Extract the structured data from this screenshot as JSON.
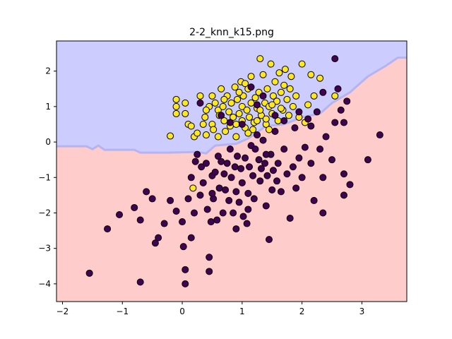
{
  "chart_data": {
    "type": "scatter",
    "title": "2-2_knn_k15.png",
    "xlabel": "",
    "ylabel": "",
    "xlim": [
      -2.1,
      3.75
    ],
    "ylim": [
      -4.5,
      2.85
    ],
    "x_ticks": [
      -2,
      -1,
      0,
      1,
      2,
      3
    ],
    "y_ticks": [
      -4,
      -3,
      -2,
      -1,
      0,
      1,
      2
    ],
    "grid": false,
    "legend": "none",
    "decision_regions": {
      "upper_class_color": "#ccccff",
      "lower_class_color": "#ffcccc",
      "boundary_color": "#b4b4f0",
      "boundary": [
        [
          -2.1,
          -0.12
        ],
        [
          -1.6,
          -0.12
        ],
        [
          -1.5,
          -0.2
        ],
        [
          -1.4,
          -0.1
        ],
        [
          -1.3,
          -0.22
        ],
        [
          -0.8,
          -0.22
        ],
        [
          -0.7,
          -0.3
        ],
        [
          -0.25,
          -0.3
        ],
        [
          0.25,
          -0.28
        ],
        [
          0.4,
          -0.32
        ],
        [
          0.55,
          -0.1
        ],
        [
          0.9,
          -0.05
        ],
        [
          1.1,
          0.1
        ],
        [
          1.4,
          0.45
        ],
        [
          1.7,
          0.5
        ],
        [
          2.0,
          0.7
        ],
        [
          2.3,
          0.8
        ],
        [
          2.5,
          1.1
        ],
        [
          2.8,
          1.4
        ],
        [
          3.1,
          1.85
        ],
        [
          3.4,
          2.15
        ],
        [
          3.6,
          2.38
        ],
        [
          3.75,
          2.38
        ]
      ]
    },
    "series": [
      {
        "color": "#fde725",
        "points": [
          [
            -0.2,
            0.17
          ],
          [
            -0.1,
            1.2
          ],
          [
            -0.1,
            1.0
          ],
          [
            -0.1,
            0.8
          ],
          [
            0.05,
            0.8
          ],
          [
            0.05,
            1.1
          ],
          [
            0.1,
            0.5
          ],
          [
            0.15,
            0.45
          ],
          [
            0.2,
            0.15
          ],
          [
            0.3,
            1.3
          ],
          [
            0.35,
            0.5
          ],
          [
            0.38,
            0.7
          ],
          [
            0.4,
            0.2
          ],
          [
            0.45,
            1.0
          ],
          [
            0.5,
            1.3
          ],
          [
            0.5,
            0.5
          ],
          [
            0.52,
            0.35
          ],
          [
            0.55,
            1.1
          ],
          [
            0.6,
            0.9
          ],
          [
            0.62,
            0.75
          ],
          [
            0.65,
            1.5
          ],
          [
            0.68,
            1.0
          ],
          [
            0.7,
            0.6
          ],
          [
            0.72,
            0.3
          ],
          [
            0.75,
            1.3
          ],
          [
            0.78,
            0.85
          ],
          [
            0.8,
            0.45
          ],
          [
            0.82,
            1.1
          ],
          [
            0.85,
            0.7
          ],
          [
            0.88,
            1.55
          ],
          [
            0.9,
            0.5
          ],
          [
            0.92,
            1.2
          ],
          [
            0.95,
            0.8
          ],
          [
            0.98,
            1.7
          ],
          [
            1.0,
            0.6
          ],
          [
            1.0,
            1.0
          ],
          [
            1.02,
            1.3
          ],
          [
            1.05,
            0.4
          ],
          [
            1.08,
            0.9
          ],
          [
            1.1,
            1.5
          ],
          [
            1.12,
            0.7
          ],
          [
            1.15,
            1.1
          ],
          [
            1.15,
            1.85
          ],
          [
            1.18,
            0.35
          ],
          [
            1.2,
            0.55
          ],
          [
            1.22,
            1.25
          ],
          [
            1.25,
            0.95
          ],
          [
            1.28,
            1.4
          ],
          [
            1.3,
            2.35
          ],
          [
            1.32,
            0.75
          ],
          [
            1.35,
            1.9
          ],
          [
            1.38,
            1.1
          ],
          [
            1.4,
            0.5
          ],
          [
            1.42,
            1.5
          ],
          [
            1.45,
            1.0
          ],
          [
            1.48,
            2.2
          ],
          [
            1.5,
            0.8
          ],
          [
            1.52,
            1.3
          ],
          [
            1.55,
            1.7
          ],
          [
            1.58,
            1.15
          ],
          [
            1.6,
            0.6
          ],
          [
            1.62,
            1.95
          ],
          [
            1.65,
            1.4
          ],
          [
            1.68,
            0.9
          ],
          [
            1.7,
            1.6
          ],
          [
            1.72,
            2.05
          ],
          [
            1.75,
            1.2
          ],
          [
            1.78,
            0.75
          ],
          [
            1.8,
            1.5
          ],
          [
            1.82,
            1.85
          ],
          [
            1.85,
            1.0
          ],
          [
            1.9,
            1.3
          ],
          [
            1.95,
            0.7
          ],
          [
            2.0,
            2.2
          ],
          [
            2.05,
            0.55
          ],
          [
            2.1,
            1.05
          ],
          [
            2.15,
            1.9
          ],
          [
            2.2,
            1.3
          ],
          [
            2.3,
            1.8
          ],
          [
            2.55,
            1.3
          ],
          [
            0.25,
            0.25
          ],
          [
            0.6,
            0.15
          ],
          [
            0.9,
            0.15
          ],
          [
            1.1,
            0.25
          ],
          [
            1.25,
            0.6
          ],
          [
            1.45,
            0.35
          ],
          [
            0.18,
            -1.3
          ],
          [
            1.05,
            1.65
          ],
          [
            1.4,
            0.65
          ],
          [
            1.5,
            1.05
          ],
          [
            0.7,
            1.2
          ],
          [
            0.95,
            1.4
          ],
          [
            1.3,
            0.9
          ],
          [
            1.65,
            0.95
          ],
          [
            0.4,
            0.9
          ]
        ]
      },
      {
        "color": "#440154",
        "points": [
          [
            -1.55,
            -3.7
          ],
          [
            -1.25,
            -2.45
          ],
          [
            -1.05,
            -2.05
          ],
          [
            -0.8,
            -1.85
          ],
          [
            -0.7,
            -2.2
          ],
          [
            -0.7,
            -3.95
          ],
          [
            -0.6,
            -1.4
          ],
          [
            -0.5,
            -1.6
          ],
          [
            -0.45,
            -2.85
          ],
          [
            -0.4,
            -2.7
          ],
          [
            -0.3,
            -2.3
          ],
          [
            -0.2,
            -1.65
          ],
          [
            -0.1,
            -1.95
          ],
          [
            0.0,
            -2.25
          ],
          [
            0.02,
            -2.95
          ],
          [
            0.05,
            -3.6
          ],
          [
            0.05,
            -4.0
          ],
          [
            0.1,
            -1.6
          ],
          [
            0.15,
            -1.0
          ],
          [
            0.15,
            -2.7
          ],
          [
            0.2,
            -2.0
          ],
          [
            0.22,
            -0.55
          ],
          [
            0.25,
            -0.35
          ],
          [
            0.3,
            -1.5
          ],
          [
            0.32,
            -0.7
          ],
          [
            0.35,
            -1.15
          ],
          [
            0.4,
            -0.6
          ],
          [
            0.42,
            -1.9
          ],
          [
            0.45,
            -3.25
          ],
          [
            0.45,
            -3.65
          ],
          [
            0.48,
            -2.25
          ],
          [
            0.5,
            -0.95
          ],
          [
            0.52,
            -1.6
          ],
          [
            0.55,
            -0.85
          ],
          [
            0.58,
            -2.2
          ],
          [
            0.6,
            -0.4
          ],
          [
            0.62,
            -1.3
          ],
          [
            0.65,
            -0.55
          ],
          [
            0.68,
            -2.0
          ],
          [
            0.7,
            -0.9
          ],
          [
            0.72,
            -1.35
          ],
          [
            0.75,
            -0.6
          ],
          [
            0.78,
            -1.65
          ],
          [
            0.8,
            -0.2
          ],
          [
            0.82,
            -1.0
          ],
          [
            0.85,
            -2.0
          ],
          [
            0.88,
            -0.7
          ],
          [
            0.9,
            -1.4
          ],
          [
            0.92,
            -0.4
          ],
          [
            0.95,
            -1.7
          ],
          [
            0.98,
            -0.75
          ],
          [
            1.0,
            -1.15
          ],
          [
            1.02,
            -2.1
          ],
          [
            1.05,
            -0.45
          ],
          [
            1.08,
            -2.3
          ],
          [
            1.1,
            -1.45
          ],
          [
            1.12,
            -0.7
          ],
          [
            1.15,
            -0.1
          ],
          [
            1.18,
            -0.95
          ],
          [
            1.2,
            -1.6
          ],
          [
            1.22,
            -0.2
          ],
          [
            1.25,
            0.2
          ],
          [
            1.28,
            -0.5
          ],
          [
            1.3,
            -1.1
          ],
          [
            1.32,
            -0.75
          ],
          [
            1.35,
            0.05
          ],
          [
            1.38,
            -0.6
          ],
          [
            1.4,
            -1.8
          ],
          [
            1.42,
            -0.95
          ],
          [
            1.45,
            -2.75
          ],
          [
            1.48,
            -0.35
          ],
          [
            1.5,
            -1.35
          ],
          [
            1.52,
            -0.8
          ],
          [
            1.55,
            0.3
          ],
          [
            1.58,
            -1.1
          ],
          [
            1.6,
            -0.6
          ],
          [
            1.65,
            -1.4
          ],
          [
            1.7,
            -0.2
          ],
          [
            1.75,
            -0.9
          ],
          [
            1.8,
            -2.15
          ],
          [
            1.85,
            -0.7
          ],
          [
            1.88,
            0.4
          ],
          [
            1.9,
            -1.3
          ],
          [
            1.95,
            -0.45
          ],
          [
            2.0,
            -1.0
          ],
          [
            2.05,
            -0.15
          ],
          [
            2.1,
            0.65
          ],
          [
            2.15,
            -0.6
          ],
          [
            2.2,
            -1.65
          ],
          [
            2.25,
            0.85
          ],
          [
            2.3,
            -0.2
          ],
          [
            2.35,
            -1.0
          ],
          [
            2.35,
            -2.0
          ],
          [
            2.4,
            0.15
          ],
          [
            2.5,
            -0.5
          ],
          [
            2.55,
            0.55
          ],
          [
            2.6,
            1.5
          ],
          [
            2.65,
            0.9
          ],
          [
            2.7,
            0.55
          ],
          [
            2.7,
            -0.9
          ],
          [
            2.7,
            -1.5
          ],
          [
            2.75,
            1.15
          ],
          [
            2.8,
            -1.2
          ],
          [
            2.35,
            1.4
          ],
          [
            2.55,
            2.35
          ],
          [
            3.1,
            -0.5
          ],
          [
            3.3,
            0.2
          ],
          [
            1.15,
            1.55
          ],
          [
            1.35,
            1.3
          ],
          [
            1.55,
            0.75
          ],
          [
            1.25,
            1.05
          ],
          [
            0.8,
            0.55
          ],
          [
            1.0,
            0.5
          ],
          [
            1.7,
            0.6
          ],
          [
            0.3,
            1.1
          ],
          [
            0.65,
            0.75
          ],
          [
            2.15,
            0.45
          ],
          [
            1.95,
            0.85
          ],
          [
            1.4,
            -0.35
          ],
          [
            0.5,
            -1.45
          ],
          [
            0.9,
            -2.45
          ],
          [
            1.1,
            -1.9
          ]
        ]
      }
    ]
  }
}
